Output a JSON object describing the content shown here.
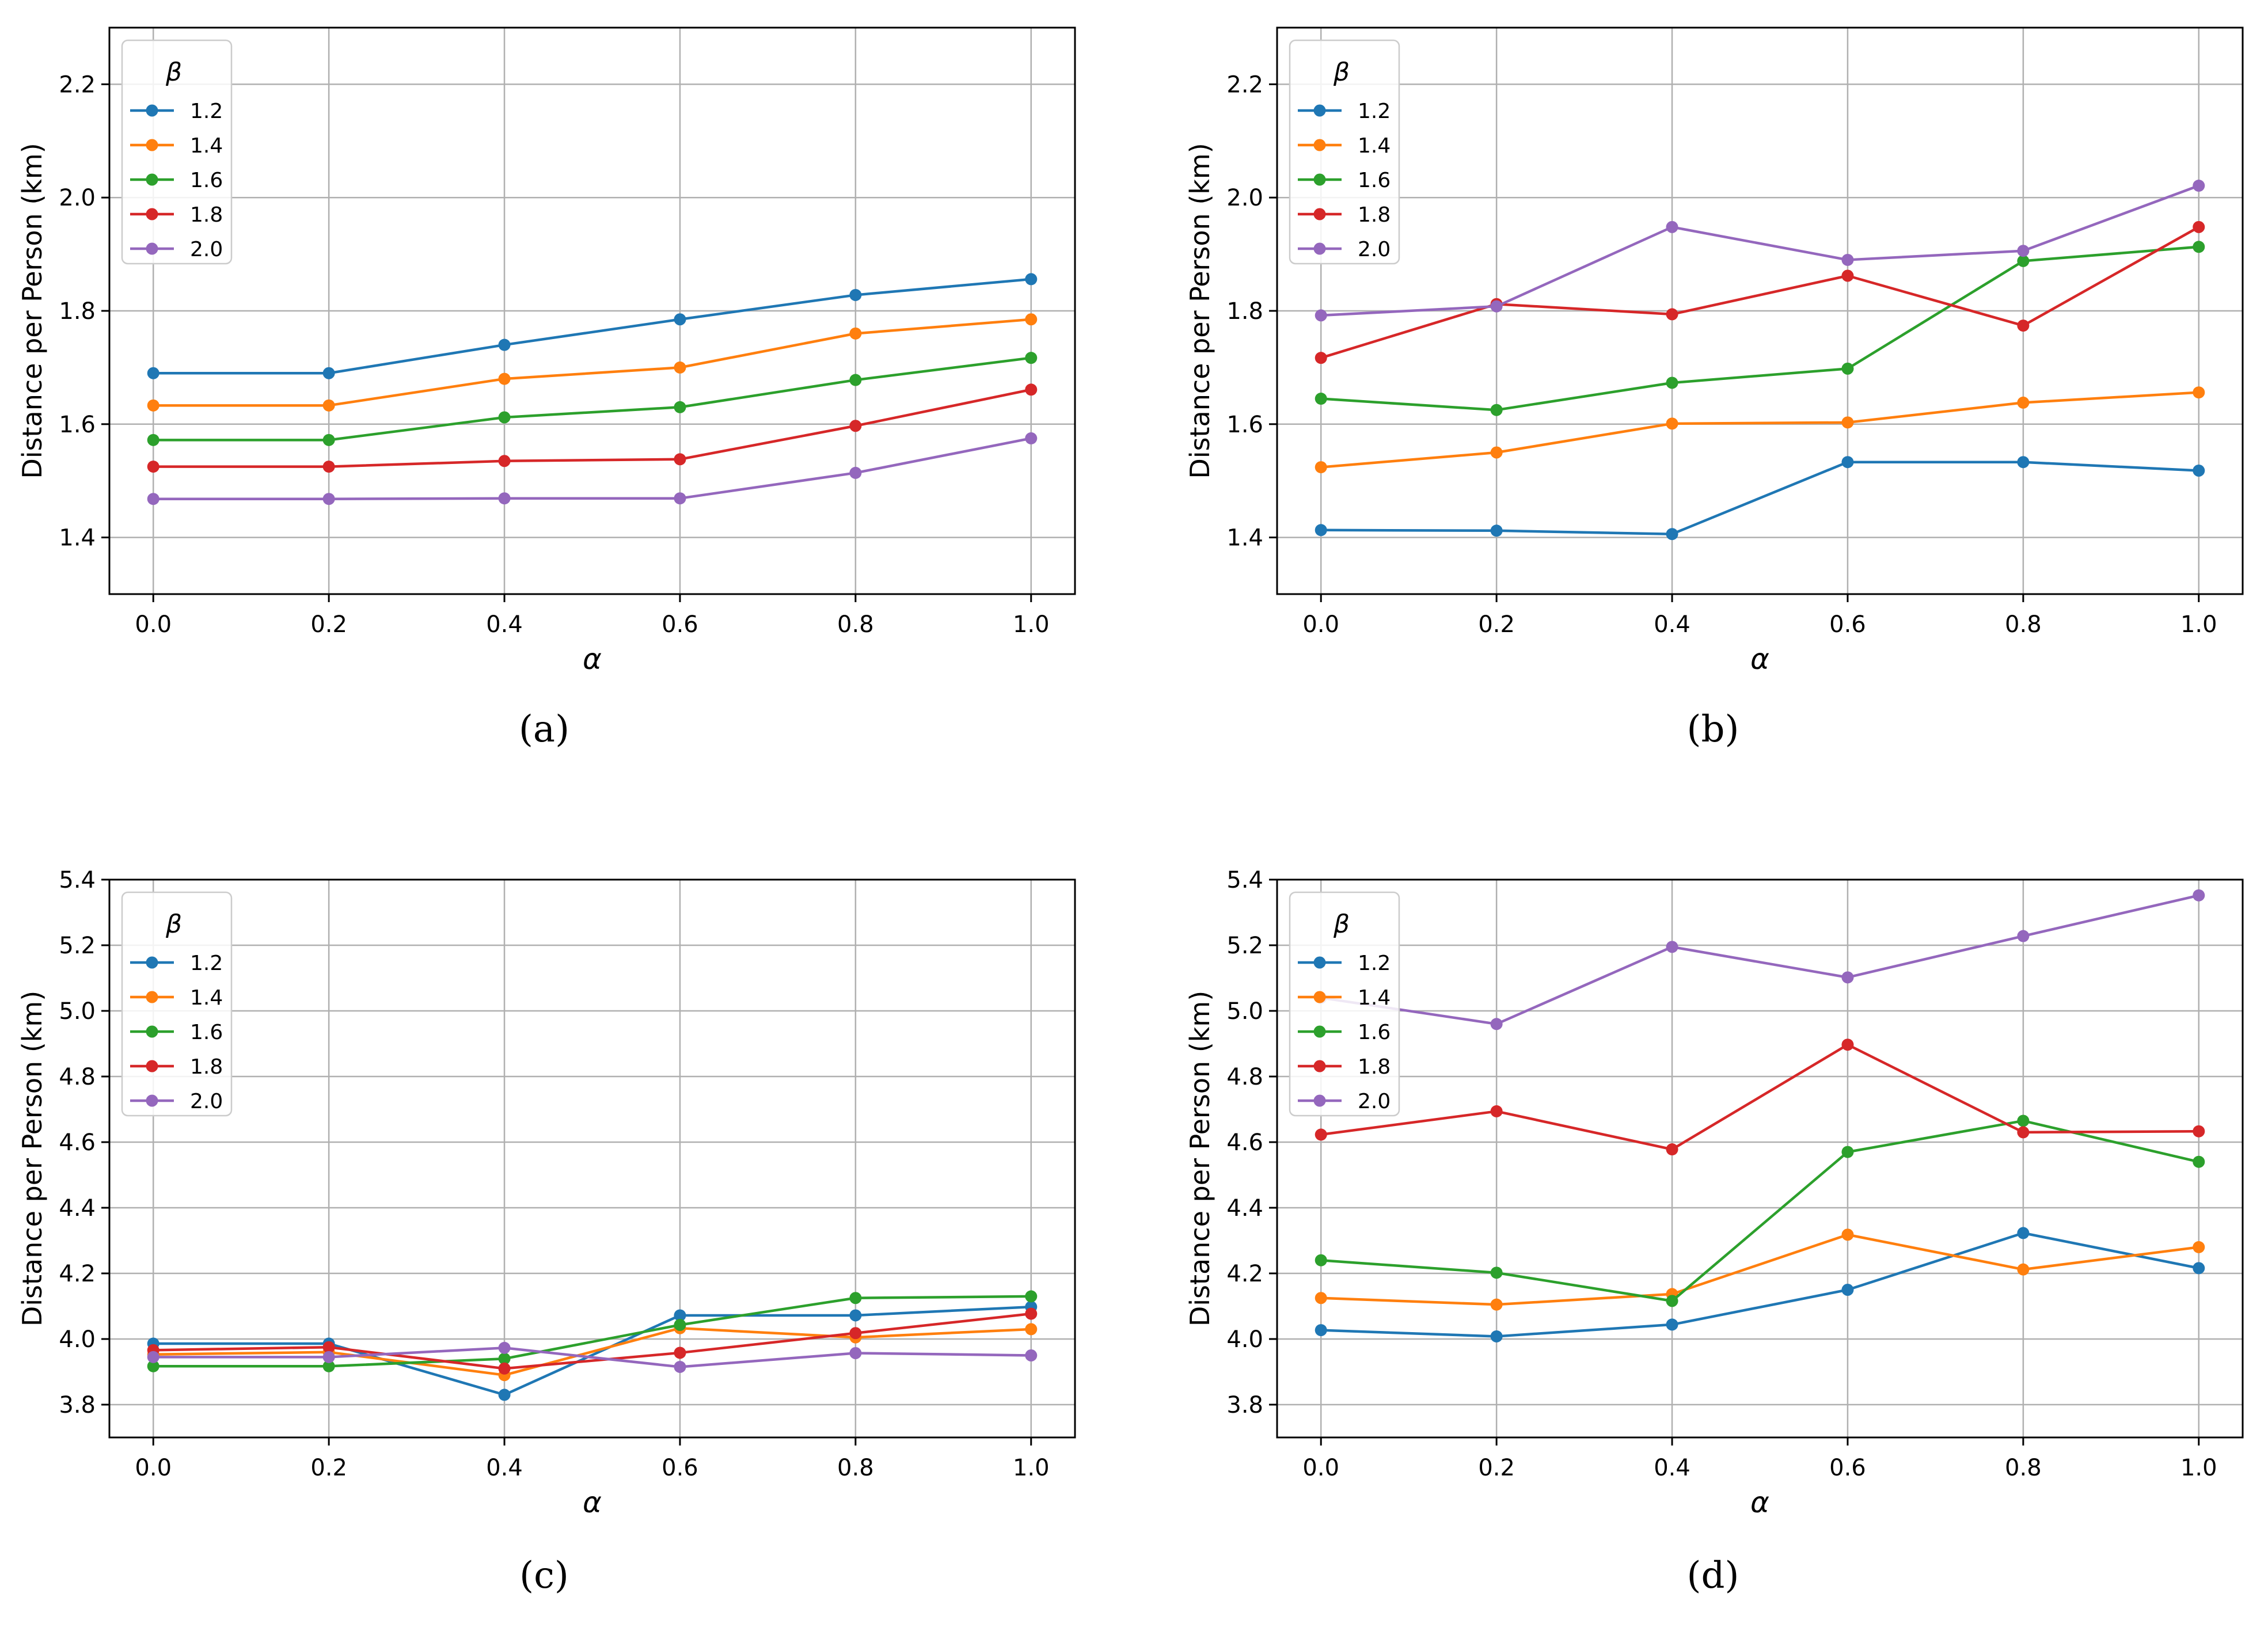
{
  "chart_data": [
    {
      "type": "line",
      "panel": "a",
      "xlabel": "α",
      "ylabel": "Distance per Person (km)",
      "x": [
        0.0,
        0.2,
        0.4,
        0.6,
        0.8,
        1.0
      ],
      "xticks": [
        "0.0",
        "0.2",
        "0.4",
        "0.6",
        "0.8",
        "1.0"
      ],
      "xlim": [
        -0.05,
        1.05
      ],
      "ylim": [
        1.3,
        2.3
      ],
      "yticks": [
        "1.4",
        "1.6",
        "1.8",
        "2.0",
        "2.2"
      ],
      "legend_title": "β",
      "legend_position": "top-left",
      "grid": true,
      "series": [
        {
          "name": "1.2",
          "color": "#1f77b4",
          "values": [
            1.69,
            1.69,
            1.74,
            1.785,
            1.828,
            1.856
          ]
        },
        {
          "name": "1.4",
          "color": "#ff7f0e",
          "values": [
            1.633,
            1.633,
            1.68,
            1.7,
            1.76,
            1.785
          ]
        },
        {
          "name": "1.6",
          "color": "#2ca02c",
          "values": [
            1.572,
            1.572,
            1.612,
            1.63,
            1.678,
            1.717
          ]
        },
        {
          "name": "1.8",
          "color": "#d62728",
          "values": [
            1.525,
            1.525,
            1.535,
            1.538,
            1.597,
            1.661
          ]
        },
        {
          "name": "2.0",
          "color": "#9467bd",
          "values": [
            1.468,
            1.468,
            1.469,
            1.469,
            1.514,
            1.575
          ]
        }
      ]
    },
    {
      "type": "line",
      "panel": "b",
      "xlabel": "α",
      "ylabel": "Distance per Person (km)",
      "x": [
        0.0,
        0.2,
        0.4,
        0.6,
        0.8,
        1.0
      ],
      "xticks": [
        "0.0",
        "0.2",
        "0.4",
        "0.6",
        "0.8",
        "1.0"
      ],
      "xlim": [
        -0.05,
        1.05
      ],
      "ylim": [
        1.3,
        2.3
      ],
      "yticks": [
        "1.4",
        "1.6",
        "1.8",
        "2.0",
        "2.2"
      ],
      "legend_title": "β",
      "legend_position": "top-left",
      "grid": true,
      "series": [
        {
          "name": "1.2",
          "color": "#1f77b4",
          "values": [
            1.413,
            1.412,
            1.406,
            1.533,
            1.533,
            1.518
          ]
        },
        {
          "name": "1.4",
          "color": "#ff7f0e",
          "values": [
            1.524,
            1.55,
            1.601,
            1.603,
            1.638,
            1.656
          ]
        },
        {
          "name": "1.6",
          "color": "#2ca02c",
          "values": [
            1.645,
            1.625,
            1.673,
            1.698,
            1.888,
            1.913
          ]
        },
        {
          "name": "1.8",
          "color": "#d62728",
          "values": [
            1.717,
            1.812,
            1.794,
            1.862,
            1.774,
            1.948
          ]
        },
        {
          "name": "2.0",
          "color": "#9467bd",
          "values": [
            1.792,
            1.808,
            1.948,
            1.89,
            1.906,
            2.021
          ]
        }
      ]
    },
    {
      "type": "line",
      "panel": "c",
      "xlabel": "α",
      "ylabel": "Distance per Person (km)",
      "x": [
        0.0,
        0.2,
        0.4,
        0.6,
        0.8,
        1.0
      ],
      "xticks": [
        "0.0",
        "0.2",
        "0.4",
        "0.6",
        "0.8",
        "1.0"
      ],
      "xlim": [
        -0.05,
        1.05
      ],
      "ylim": [
        3.7,
        5.4
      ],
      "yticks": [
        "3.8",
        "4.0",
        "4.2",
        "4.4",
        "4.6",
        "4.8",
        "5.0",
        "5.2",
        "5.4"
      ],
      "legend_title": "β",
      "legend_position": "top-left",
      "grid": true,
      "series": [
        {
          "name": "1.2",
          "color": "#1f77b4",
          "values": [
            3.986,
            3.986,
            3.83,
            4.072,
            4.072,
            4.098
          ]
        },
        {
          "name": "1.4",
          "color": "#ff7f0e",
          "values": [
            3.953,
            3.96,
            3.89,
            4.033,
            4.005,
            4.03
          ]
        },
        {
          "name": "1.6",
          "color": "#2ca02c",
          "values": [
            3.917,
            3.917,
            3.94,
            4.043,
            4.125,
            4.13
          ]
        },
        {
          "name": "1.8",
          "color": "#d62728",
          "values": [
            3.966,
            3.975,
            3.91,
            3.958,
            4.018,
            4.077
          ]
        },
        {
          "name": "2.0",
          "color": "#9467bd",
          "values": [
            3.945,
            3.945,
            3.973,
            3.915,
            3.957,
            3.95
          ]
        }
      ]
    },
    {
      "type": "line",
      "panel": "d",
      "xlabel": "α",
      "ylabel": "Distance per Person (km)",
      "x": [
        0.0,
        0.2,
        0.4,
        0.6,
        0.8,
        1.0
      ],
      "xticks": [
        "0.0",
        "0.2",
        "0.4",
        "0.6",
        "0.8",
        "1.0"
      ],
      "xlim": [
        -0.05,
        1.05
      ],
      "ylim": [
        3.7,
        5.4
      ],
      "yticks": [
        "3.8",
        "4.0",
        "4.2",
        "4.4",
        "4.6",
        "4.8",
        "5.0",
        "5.2",
        "5.4"
      ],
      "legend_title": "β",
      "legend_position": "top-left",
      "grid": true,
      "series": [
        {
          "name": "1.2",
          "color": "#1f77b4",
          "values": [
            4.027,
            4.008,
            4.044,
            4.15,
            4.323,
            4.216
          ]
        },
        {
          "name": "1.4",
          "color": "#ff7f0e",
          "values": [
            4.125,
            4.105,
            4.137,
            4.318,
            4.212,
            4.28
          ]
        },
        {
          "name": "1.6",
          "color": "#2ca02c",
          "values": [
            4.24,
            4.202,
            4.116,
            4.57,
            4.665,
            4.54
          ]
        },
        {
          "name": "1.8",
          "color": "#d62728",
          "values": [
            4.623,
            4.694,
            4.578,
            4.897,
            4.63,
            4.633
          ]
        },
        {
          "name": "2.0",
          "color": "#9467bd",
          "values": [
            5.04,
            4.96,
            5.195,
            5.102,
            5.228,
            5.352
          ]
        }
      ]
    }
  ],
  "captions": [
    "(a)",
    "(b)",
    "(c)",
    "(d)"
  ]
}
